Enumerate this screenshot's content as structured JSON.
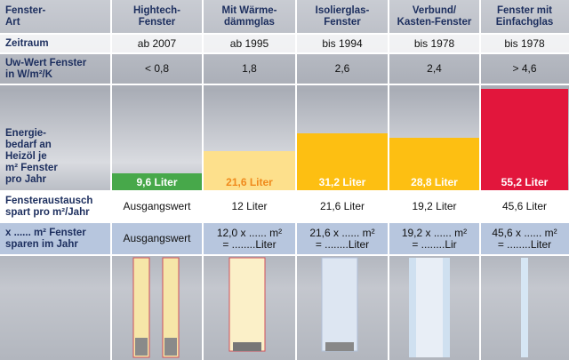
{
  "row_labels": [
    "Fenster-\nArt",
    "Zeitraum",
    "Uw-Wert Fenster\nin W/m²/K",
    "Energie-\nbedarf an\nHeizöl je\nm² Fenster\npro Jahr",
    "Fensteraustausch\nspart pro m²/Jahr",
    "x ...... m² Fenster\nsparen im Jahr"
  ],
  "window_types": [
    "Hightech-\nFenster",
    "Mit Wärme-\ndämmglas",
    "Isolierglas-\nFenster",
    "Verbund/\nKasten-Fenster",
    "Fenster mit\nEinfachglas"
  ],
  "zeitraum": [
    "ab 2007",
    "ab 1995",
    "bis 1994",
    "bis 1978",
    "bis 1978"
  ],
  "u_wert": [
    "< 0,8",
    "1,8",
    "2,6",
    "2,4",
    "> 4,6"
  ],
  "energy": {
    "values": [
      9.6,
      21.6,
      31.2,
      28.8,
      55.2
    ],
    "value_labels": [
      "9,6 Liter",
      "21,6 Liter",
      "31,2 Liter",
      "28,8 Liter",
      "55,2 Liter"
    ],
    "colors": [
      "#47a84a",
      "#fde08c",
      "#fdbf12",
      "#fdbf12",
      "#e2163c"
    ],
    "label_colors": [
      "#ffffff",
      "#f08a1c",
      "#ffffff",
      "#ffffff",
      "#ffffff"
    ]
  },
  "austausch": [
    "Ausgangswert",
    "12 Liter",
    "21,6 Liter",
    "19,2 Liter",
    "45,6 Liter"
  ],
  "sparen": [
    "Ausgangswert",
    "12,0 x ...... m²\n= ........Liter",
    "21,6 x ...... m²\n= ........Liter",
    "19,2 x ...... m²\n= ........Lir",
    "45,6 x ...... m²\n= ........Liter"
  ]
}
